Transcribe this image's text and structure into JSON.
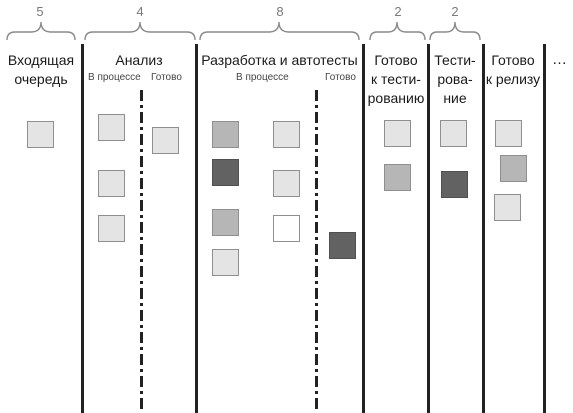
{
  "board": {
    "limits": [
      "5",
      "4",
      "8",
      "2",
      "2"
    ],
    "columns": [
      {
        "id": "backlog",
        "title": "Входящая\nочередь"
      },
      {
        "id": "analysis",
        "title": "Анализ",
        "subs": [
          "В процессе",
          "Готово"
        ]
      },
      {
        "id": "dev",
        "title": "Разработка и автотесты",
        "subs": [
          "В процессе",
          "Готово"
        ]
      },
      {
        "id": "ready-test",
        "title": "Готово\nк тести-\nрованию"
      },
      {
        "id": "testing",
        "title": "Тести-\nрова-\nние"
      },
      {
        "id": "ready-release",
        "title": "Готово\nк релизу"
      }
    ],
    "ellipsis": "…"
  },
  "cards": [
    {
      "column": "backlog",
      "shade": "light"
    },
    {
      "column": "analysis.in-progress",
      "shade": "light"
    },
    {
      "column": "analysis.in-progress",
      "shade": "light"
    },
    {
      "column": "analysis.in-progress",
      "shade": "light"
    },
    {
      "column": "analysis.done",
      "shade": "light"
    },
    {
      "column": "dev.in-progress",
      "shade": "mid"
    },
    {
      "column": "dev.in-progress",
      "shade": "dark"
    },
    {
      "column": "dev.in-progress",
      "shade": "mid"
    },
    {
      "column": "dev.in-progress",
      "shade": "light"
    },
    {
      "column": "dev.in-progress",
      "shade": "light"
    },
    {
      "column": "dev.in-progress",
      "shade": "light"
    },
    {
      "column": "dev.in-progress",
      "shade": "white"
    },
    {
      "column": "dev.done",
      "shade": "dark"
    },
    {
      "column": "ready-test",
      "shade": "light"
    },
    {
      "column": "ready-test",
      "shade": "mid"
    },
    {
      "column": "testing",
      "shade": "light"
    },
    {
      "column": "testing",
      "shade": "dark"
    },
    {
      "column": "ready-release",
      "shade": "light"
    },
    {
      "column": "ready-release",
      "shade": "mid"
    },
    {
      "column": "ready-release",
      "shade": "light"
    }
  ],
  "colors": {
    "card_light": "#e4e4e4",
    "card_mid": "#b6b6b6",
    "card_dark": "#626262",
    "card_white": "#ffffff",
    "line": "#222222",
    "brace": "#8a8a8a"
  }
}
